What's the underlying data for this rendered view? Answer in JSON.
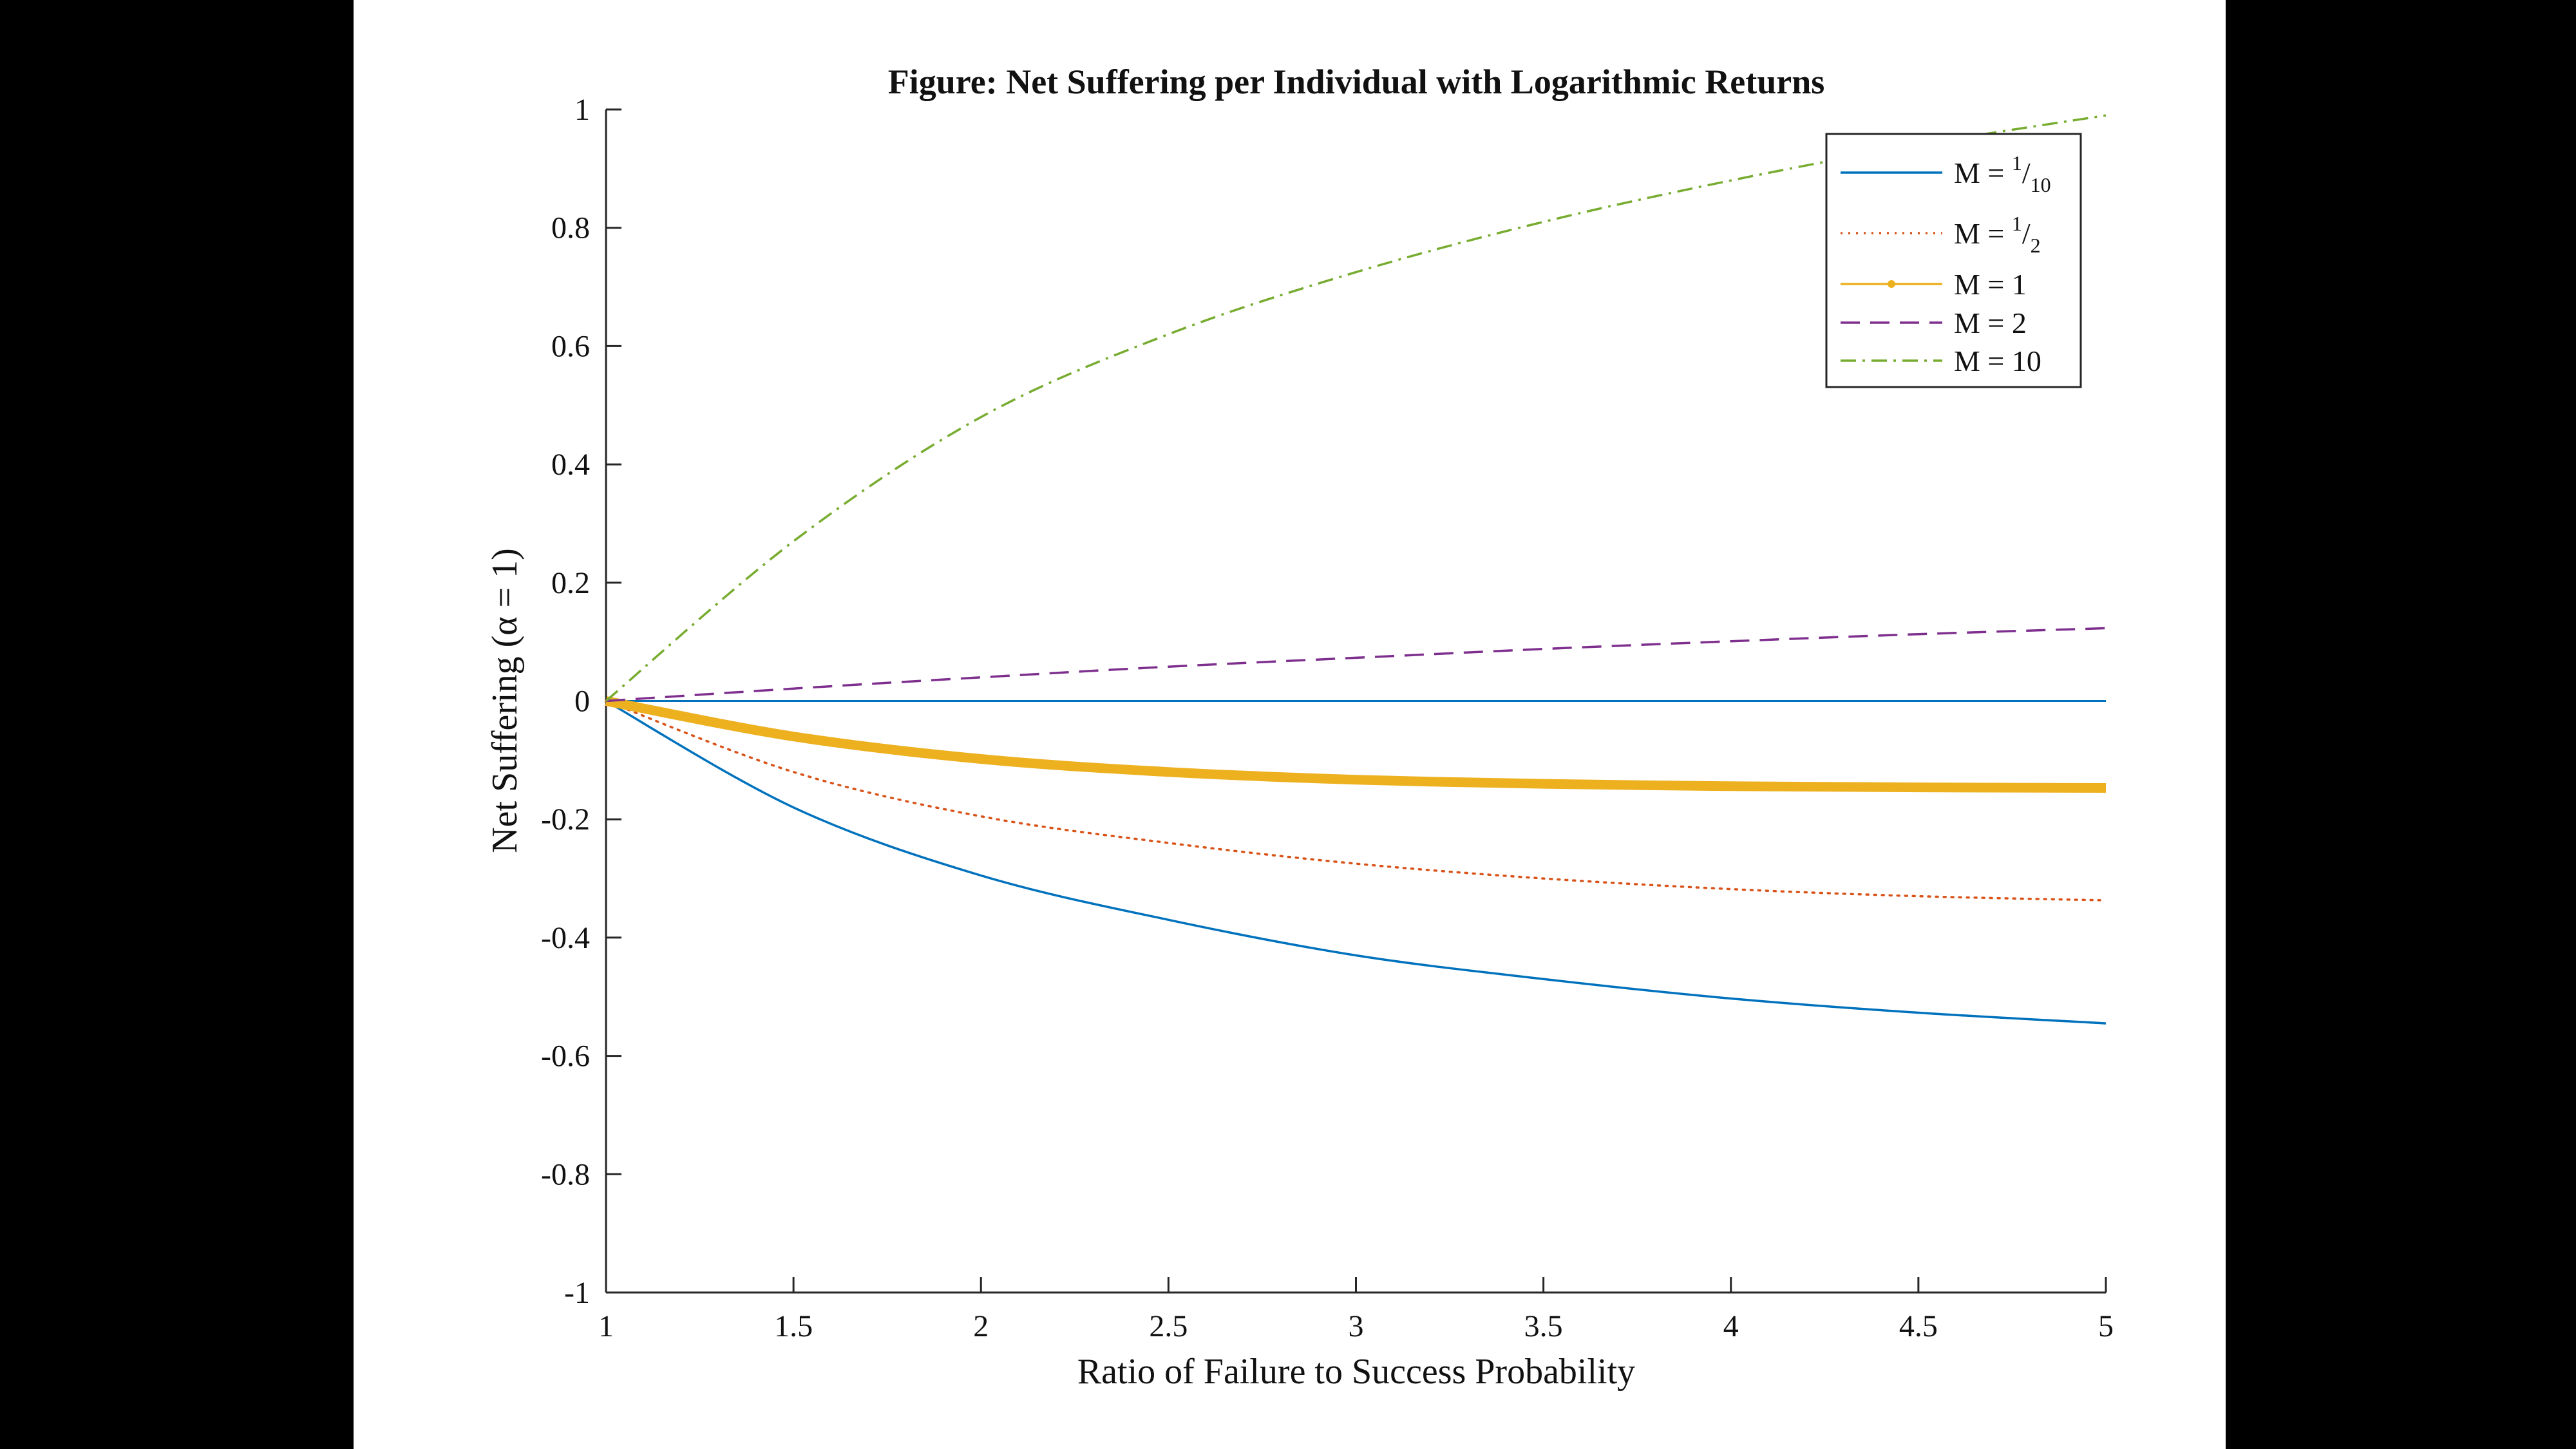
{
  "chart_data": {
    "type": "line",
    "title": "Figure: Net Suffering per Individual with Logarithmic Returns",
    "xlabel": "Ratio of Failure to Success Probability",
    "ylabel": "Net Suffering (α = 1)",
    "xlim": [
      1,
      5
    ],
    "ylim": [
      -1,
      1
    ],
    "xticks": [
      1,
      1.5,
      2,
      2.5,
      3,
      3.5,
      4,
      4.5,
      5
    ],
    "yticks": [
      -1,
      -0.8,
      -0.6,
      -0.4,
      -0.2,
      0,
      0.2,
      0.4,
      0.6,
      0.8,
      1
    ],
    "x": [
      1,
      1.5,
      2,
      2.5,
      3,
      3.5,
      4,
      4.5,
      5
    ],
    "series": [
      {
        "name": "M = 1/10",
        "label_base": "M = ",
        "label_num": "1",
        "label_den": "10",
        "color": "#0072BD",
        "style": "solid",
        "width": "thin",
        "values": [
          0,
          -0.18,
          -0.295,
          -0.37,
          -0.43,
          -0.47,
          -0.503,
          -0.527,
          -0.545
        ]
      },
      {
        "name": "M = 1/2",
        "label_base": "M = ",
        "label_num": "1",
        "label_den": "2",
        "color": "#D95319",
        "style": "dotted",
        "width": "thin",
        "values": [
          0,
          -0.12,
          -0.195,
          -0.24,
          -0.275,
          -0.3,
          -0.318,
          -0.33,
          -0.337
        ]
      },
      {
        "name": "M = 1",
        "label_base": "M = 1",
        "label_num": "",
        "label_den": "",
        "color": "#EDB120",
        "style": "solid",
        "width": "thick",
        "values": [
          0,
          -0.06,
          -0.098,
          -0.12,
          -0.133,
          -0.14,
          -0.144,
          -0.146,
          -0.147
        ]
      },
      {
        "name": "M = 2",
        "label_base": "M = 2",
        "label_num": "",
        "label_den": "",
        "color": "#7E2F8E",
        "style": "dashed",
        "width": "thin",
        "values": [
          0,
          0.021,
          0.04,
          0.058,
          0.073,
          0.088,
          0.101,
          0.113,
          0.123
        ]
      },
      {
        "name": "M = 10",
        "label_base": "M = 10",
        "label_num": "",
        "label_den": "",
        "color": "#77AC30",
        "style": "dashdot",
        "width": "thin",
        "values": [
          0,
          0.27,
          0.48,
          0.62,
          0.725,
          0.81,
          0.88,
          0.94,
          0.99
        ]
      }
    ],
    "legend_position": "top-right",
    "grid": false
  }
}
